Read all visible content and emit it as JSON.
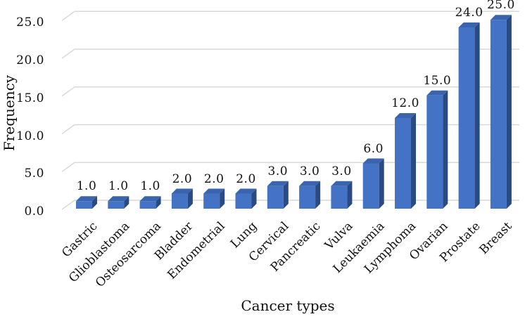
{
  "chart_data": {
    "type": "bar",
    "style": "3d-column",
    "title": "",
    "xlabel": "Cancer types",
    "ylabel": "Frequency",
    "categories": [
      "Gastric",
      "Glioblastoma",
      "Osteosarcoma",
      "Bladder",
      "Endometrial",
      "Lung",
      "Cervical",
      "Pancreatic",
      "Vulva",
      "Leukaemia",
      "Lymphoma",
      "Ovarian",
      "Prostate",
      "Breast"
    ],
    "values": [
      1.0,
      1.0,
      1.0,
      2.0,
      2.0,
      2.0,
      3.0,
      3.0,
      3.0,
      6.0,
      12.0,
      15.0,
      24.0,
      25.0
    ],
    "data_labels": [
      "1.0",
      "1.0",
      "1.0",
      "2.0",
      "2.0",
      "2.0",
      "3.0",
      "3.0",
      "3.0",
      "6.0",
      "12.0",
      "15.0",
      "24.0",
      "25.0"
    ],
    "y_ticks": [
      "0.0",
      "5.0",
      "10.0",
      "15.0",
      "20.0",
      "25.0"
    ],
    "ylim": [
      0,
      25
    ],
    "grid": true,
    "legend": false,
    "colors": {
      "bar_front": "#4472c4",
      "bar_top": "#3a64ae",
      "bar_side": "#2a4a84",
      "gridline": "#d8d8d8",
      "text": "#111111",
      "background": "#ffffff"
    }
  }
}
